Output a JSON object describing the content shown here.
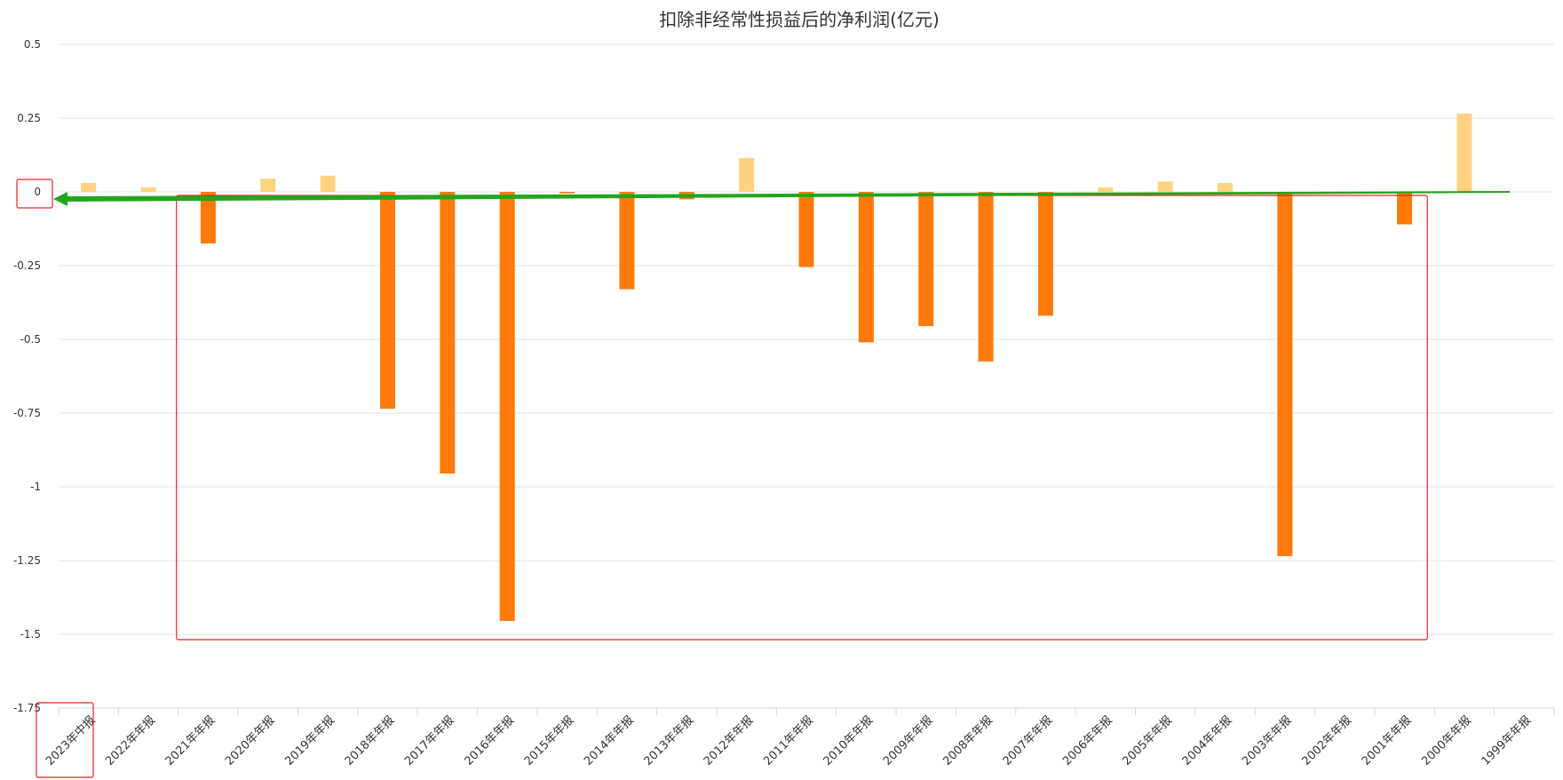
{
  "chart_data": {
    "type": "bar",
    "title": "扣除非经常性损益后的净利润(亿元)",
    "xlabel": "",
    "ylabel": "",
    "ylim": [
      -1.75,
      0.5
    ],
    "yticks": [
      "0.5",
      "0.25",
      "0",
      "-0.25",
      "-0.5",
      "-0.75",
      "-1",
      "-1.25",
      "-1.5",
      "-1.75"
    ],
    "ytick_values": [
      0.5,
      0.25,
      0,
      -0.25,
      -0.5,
      -0.75,
      -1,
      -1.25,
      -1.5,
      -1.75
    ],
    "categories": [
      "2023年中报",
      "2022年年报",
      "2021年年报",
      "2020年年报",
      "2019年年报",
      "2018年年报",
      "2017年年报",
      "2016年年报",
      "2015年年报",
      "2014年年报",
      "2013年年报",
      "2012年年报",
      "2011年年报",
      "2010年年报",
      "2009年年报",
      "2008年年报",
      "2007年年报",
      "2006年年报",
      "2005年年报",
      "2004年年报",
      "2003年年报",
      "2002年年报",
      "2001年年报",
      "2000年年报",
      "1999年年报"
    ],
    "values": [
      0.03,
      0.015,
      -0.175,
      0.045,
      0.055,
      -0.735,
      -0.955,
      -1.455,
      -0.005,
      -0.33,
      -0.025,
      0.115,
      -0.255,
      -0.51,
      -0.455,
      -0.575,
      -0.42,
      0.015,
      0.035,
      0.03,
      -1.235,
      null,
      -0.11,
      0.265,
      null
    ],
    "grid": true,
    "colors": {
      "positive": "#FFD27F",
      "negative": "#FF7A0A",
      "grid": "#E6E6E6",
      "axis": "#CCD6EB",
      "annotation": "#EE2222",
      "arrow": "#22A61C"
    }
  }
}
